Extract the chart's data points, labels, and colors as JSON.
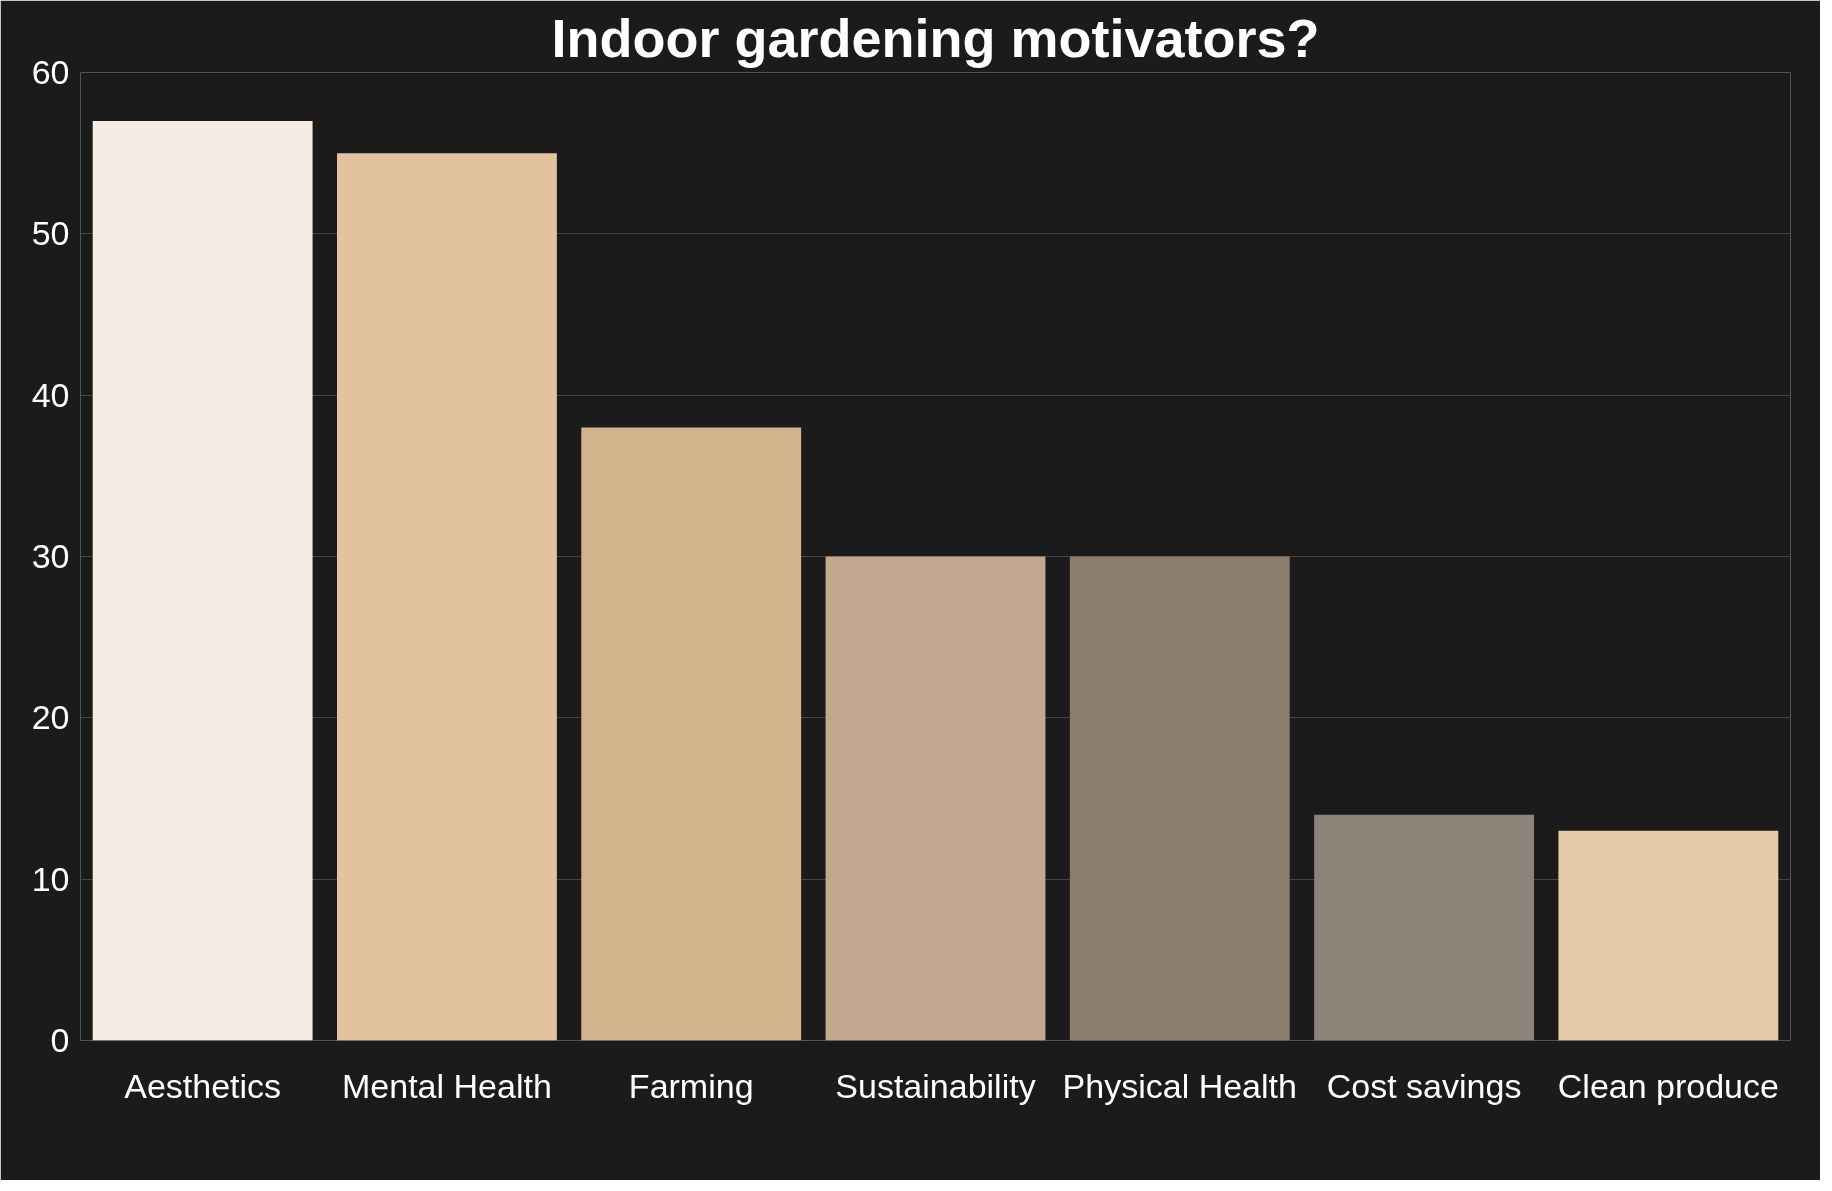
{
  "chart_data": {
    "type": "bar",
    "title": "Indoor gardening motivators?",
    "categories": [
      "Aesthetics",
      "Mental Health",
      "Farming",
      "Sustainability",
      "Physical Health",
      "Cost savings",
      "Clean produce"
    ],
    "values": [
      57,
      55,
      38,
      30,
      30,
      14,
      13
    ],
    "colors": [
      "#f5ede3",
      "#e3c2a0",
      "#d2b38b",
      "#c0a78e",
      "#8c7c6c",
      "#8b8378",
      "#e6cbab"
    ],
    "ylim": [
      0,
      60
    ],
    "yticks": [
      0,
      10,
      20,
      30,
      40,
      50,
      60
    ],
    "grid": "y"
  }
}
